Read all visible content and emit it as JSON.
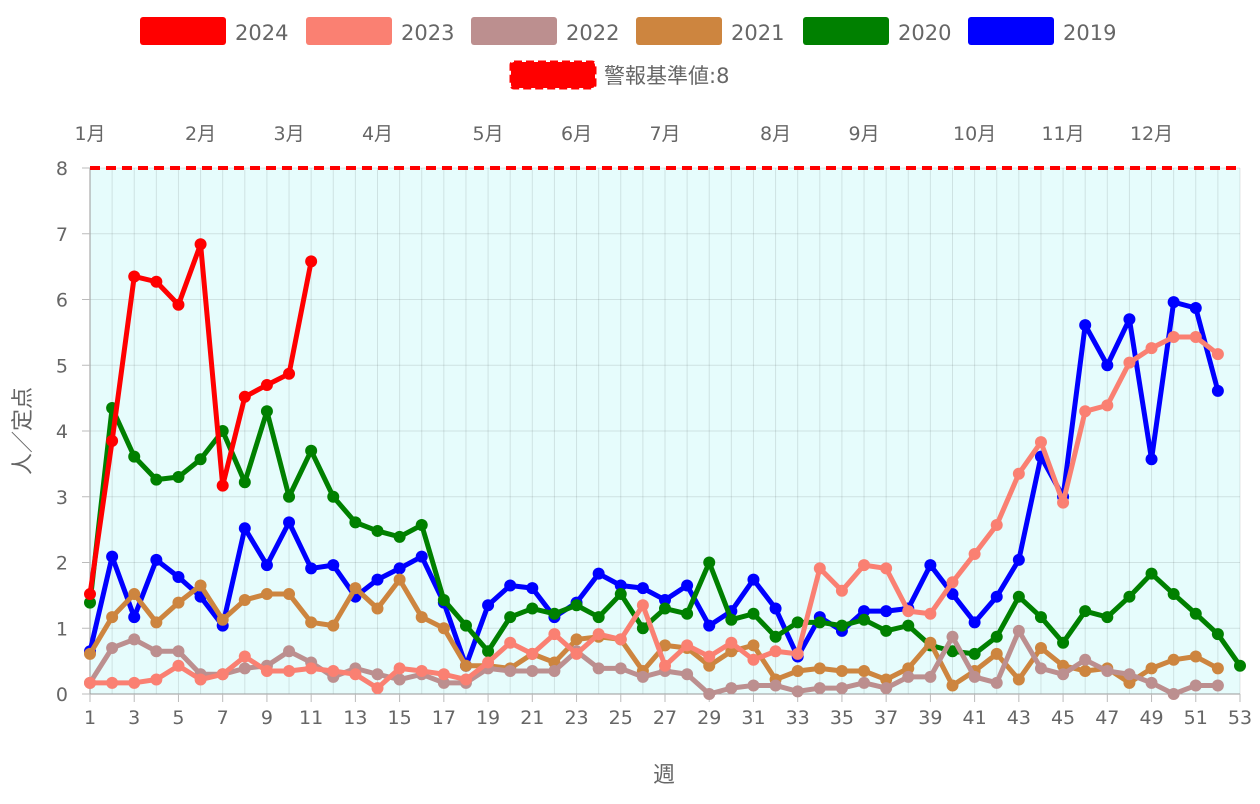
{
  "chart_data": {
    "type": "line",
    "xlabel": "週",
    "ylabel": "人／定点",
    "x_range": [
      1,
      53
    ],
    "ylim": [
      0,
      8
    ],
    "x_ticks": [
      1,
      3,
      5,
      7,
      9,
      11,
      13,
      15,
      17,
      19,
      21,
      23,
      25,
      27,
      29,
      31,
      33,
      35,
      37,
      39,
      41,
      43,
      45,
      47,
      49,
      51,
      53
    ],
    "y_ticks": [
      0,
      1,
      2,
      3,
      4,
      5,
      6,
      7,
      8
    ],
    "grid": true,
    "legend_position": "top",
    "plot_background": "#e6fcfc",
    "months": [
      {
        "label": "1月",
        "week": 1
      },
      {
        "label": "2月",
        "week": 6
      },
      {
        "label": "3月",
        "week": 10
      },
      {
        "label": "4月",
        "week": 14
      },
      {
        "label": "5月",
        "week": 19
      },
      {
        "label": "6月",
        "week": 23
      },
      {
        "label": "7月",
        "week": 27
      },
      {
        "label": "8月",
        "week": 32
      },
      {
        "label": "9月",
        "week": 36
      },
      {
        "label": "10月",
        "week": 41
      },
      {
        "label": "11月",
        "week": 45
      },
      {
        "label": "12月",
        "week": 49
      }
    ],
    "threshold": {
      "name": "警報基準値:8",
      "value": 8,
      "color": "#ff0000"
    },
    "series": [
      {
        "name": "2024",
        "color": "#ff0000",
        "start_week": 1,
        "values": [
          1.52,
          3.85,
          6.35,
          6.27,
          5.92,
          6.84,
          3.17,
          4.52,
          4.7,
          4.87,
          6.58
        ]
      },
      {
        "name": "2023",
        "color": "#fa8072",
        "start_week": 1,
        "values": [
          0.17,
          0.17,
          0.17,
          0.22,
          0.43,
          0.22,
          0.3,
          0.57,
          0.35,
          0.35,
          0.39,
          0.35,
          0.3,
          0.09,
          0.39,
          0.35,
          0.3,
          0.22,
          0.48,
          0.78,
          0.61,
          0.91,
          0.61,
          0.91,
          0.83,
          1.35,
          0.43,
          0.74,
          0.57,
          0.78,
          0.52,
          0.65,
          0.61,
          1.91,
          1.57,
          1.96,
          1.91,
          1.26,
          1.22,
          1.7,
          2.13,
          2.57,
          3.35,
          3.83,
          2.91,
          4.3,
          4.39,
          5.04,
          5.26,
          5.43,
          5.43,
          5.17
        ]
      },
      {
        "name": "2022",
        "color": "#bc8f8f",
        "start_week": 1,
        "values": [
          0.17,
          0.7,
          0.83,
          0.65,
          0.65,
          0.3,
          0.3,
          0.39,
          0.43,
          0.65,
          0.48,
          0.26,
          0.39,
          0.3,
          0.22,
          0.3,
          0.17,
          0.17,
          0.39,
          0.35,
          0.35,
          0.35,
          0.65,
          0.39,
          0.39,
          0.26,
          0.35,
          0.3,
          0.0,
          0.09,
          0.13,
          0.13,
          0.04,
          0.09,
          0.09,
          0.17,
          0.09,
          0.26,
          0.26,
          0.87,
          0.26,
          0.17,
          0.96,
          0.39,
          0.3,
          0.52,
          0.35,
          0.3,
          0.17,
          0.0,
          0.13,
          0.13
        ]
      },
      {
        "name": "2021",
        "color": "#cd853f",
        "start_week": 1,
        "values": [
          0.61,
          1.17,
          1.52,
          1.09,
          1.39,
          1.65,
          1.13,
          1.43,
          1.52,
          1.52,
          1.09,
          1.04,
          1.61,
          1.3,
          1.74,
          1.17,
          1.0,
          0.43,
          0.43,
          0.39,
          0.61,
          0.48,
          0.83,
          0.87,
          0.83,
          0.35,
          0.74,
          0.7,
          0.43,
          0.65,
          0.74,
          0.22,
          0.35,
          0.39,
          0.35,
          0.35,
          0.22,
          0.39,
          0.78,
          0.13,
          0.35,
          0.61,
          0.22,
          0.7,
          0.43,
          0.35,
          0.39,
          0.17,
          0.39,
          0.52,
          0.57,
          0.39
        ]
      },
      {
        "name": "2020",
        "color": "#008000",
        "start_week": 1,
        "values": [
          1.39,
          4.35,
          3.61,
          3.26,
          3.3,
          3.57,
          4.0,
          3.22,
          4.3,
          3.0,
          3.7,
          3.0,
          2.61,
          2.48,
          2.39,
          2.57,
          1.43,
          1.04,
          0.65,
          1.17,
          1.3,
          1.22,
          1.35,
          1.17,
          1.52,
          1.0,
          1.3,
          1.22,
          2.0,
          1.13,
          1.22,
          0.87,
          1.09,
          1.09,
          1.04,
          1.13,
          0.96,
          1.04,
          0.74,
          0.65,
          0.61,
          0.87,
          1.48,
          1.17,
          0.78,
          1.26,
          1.17,
          1.48,
          1.83,
          1.52,
          1.22,
          0.91,
          0.43
        ]
      },
      {
        "name": "2019",
        "color": "#0000ff",
        "start_week": 1,
        "values": [
          0.65,
          2.09,
          1.17,
          2.04,
          1.78,
          1.48,
          1.04,
          2.52,
          1.96,
          2.61,
          1.91,
          1.96,
          1.48,
          1.74,
          1.91,
          2.09,
          1.39,
          0.43,
          1.35,
          1.65,
          1.61,
          1.17,
          1.39,
          1.83,
          1.65,
          1.61,
          1.43,
          1.65,
          1.04,
          1.26,
          1.74,
          1.3,
          0.57,
          1.17,
          0.96,
          1.26,
          1.26,
          1.3,
          1.96,
          1.52,
          1.09,
          1.48,
          2.04,
          3.61,
          3.0,
          5.61,
          5.0,
          5.7,
          3.57,
          5.96,
          5.87,
          4.61
        ]
      }
    ]
  }
}
